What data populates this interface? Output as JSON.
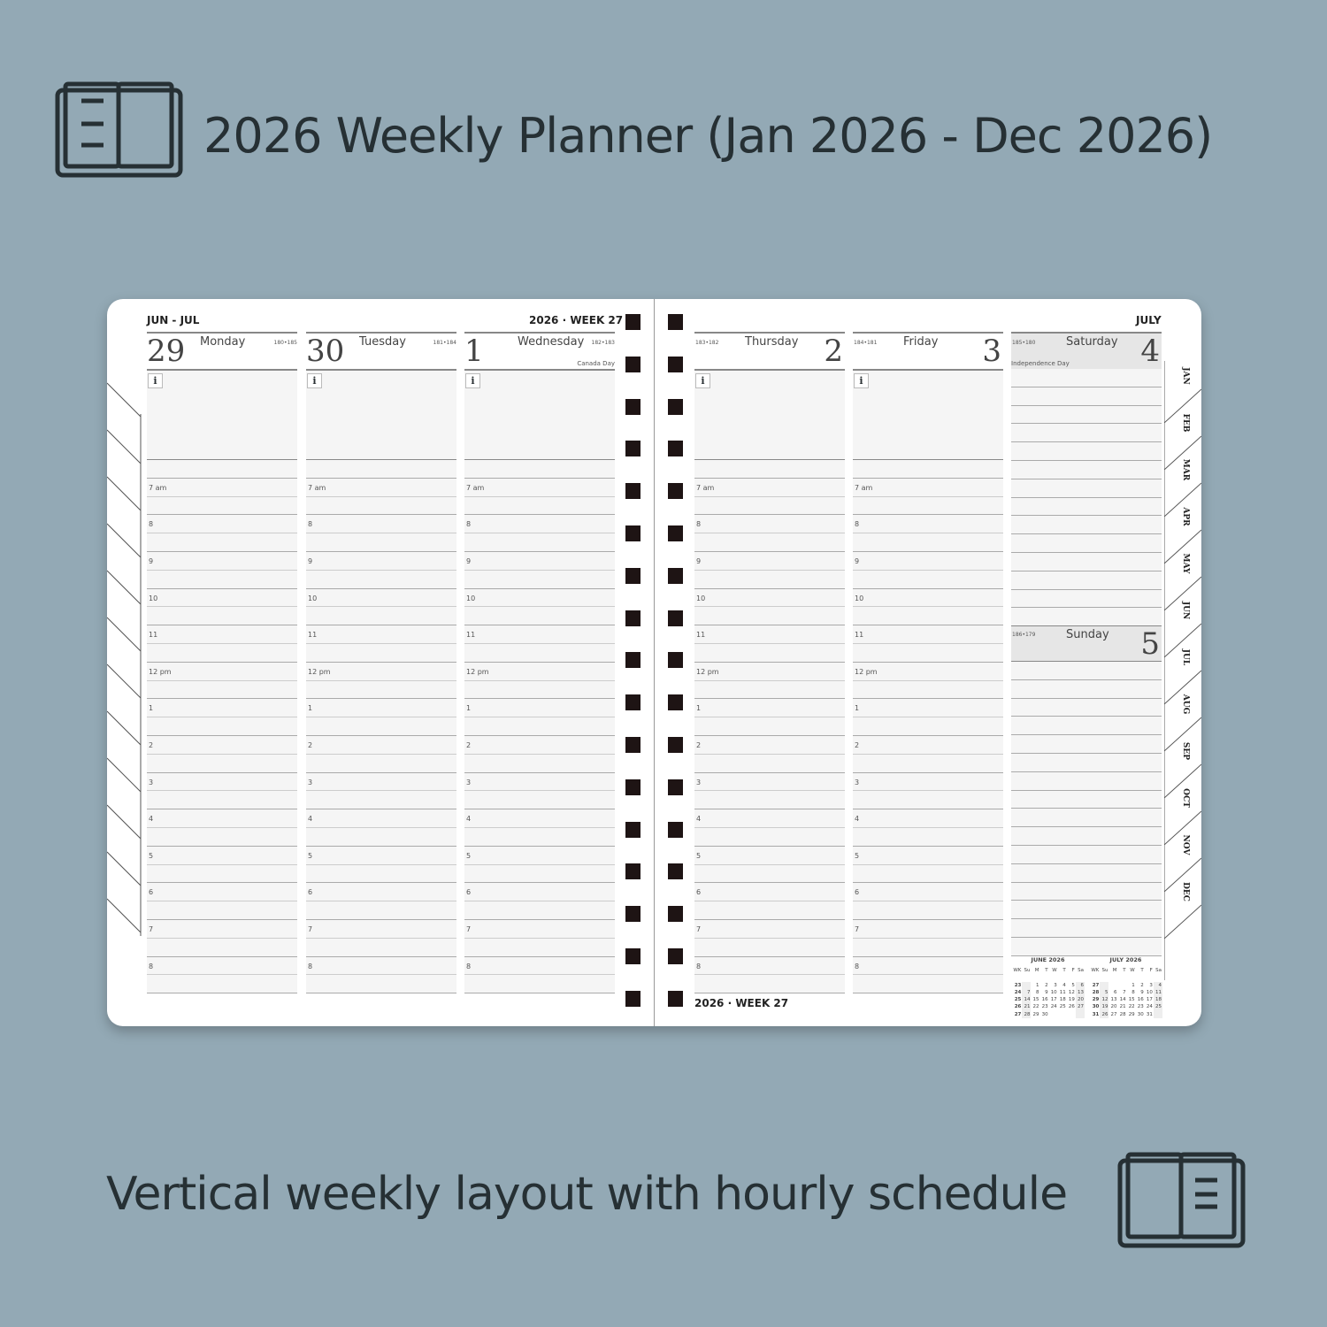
{
  "header": {
    "title": "2026 Weekly Planner (Jan 2026 - Dec 2026)",
    "icon": "open-book-icon"
  },
  "footer": {
    "subtitle": "Vertical weekly layout with hourly schedule",
    "icon": "open-book-icon"
  },
  "planner": {
    "left_range": "JUN - JUL",
    "left_week": "2026 · WEEK 27",
    "right_month": "JULY",
    "right_week": "2026 · WEEK 27",
    "info_label": "i",
    "hours": [
      "7 am",
      "8",
      "9",
      "10",
      "11",
      "12 pm",
      "1",
      "2",
      "3",
      "4",
      "5",
      "6",
      "7",
      "8"
    ],
    "days": [
      {
        "num": "29",
        "name": "Monday",
        "count": "180•185",
        "holiday": ""
      },
      {
        "num": "30",
        "name": "Tuesday",
        "count": "181•184",
        "holiday": ""
      },
      {
        "num": "1",
        "name": "Wednesday",
        "count": "182•183",
        "holiday": "Canada Day"
      },
      {
        "num": "2",
        "name": "Thursday",
        "count": "183•182",
        "holiday": ""
      },
      {
        "num": "3",
        "name": "Friday",
        "count": "184•181",
        "holiday": ""
      }
    ],
    "saturday": {
      "num": "4",
      "name": "Saturday",
      "count": "185•180",
      "holiday": "Independence Day"
    },
    "sunday": {
      "num": "5",
      "name": "Sunday",
      "count": "186•179"
    },
    "tabs": [
      "JAN",
      "FEB",
      "MAR",
      "APR",
      "MAY",
      "JUN",
      "JUL",
      "AUG",
      "SEP",
      "OCT",
      "NOV",
      "DEC"
    ],
    "mini_calendars": [
      {
        "title": "JUNE  2026",
        "head": [
          "WK",
          "Su",
          "M",
          "T",
          "W",
          "T",
          "F",
          "Sa"
        ],
        "weeks": [
          [
            "23",
            "",
            "1",
            "2",
            "3",
            "4",
            "5",
            "6"
          ],
          [
            "24",
            "7",
            "8",
            "9",
            "10",
            "11",
            "12",
            "13"
          ],
          [
            "25",
            "14",
            "15",
            "16",
            "17",
            "18",
            "19",
            "20"
          ],
          [
            "26",
            "21",
            "22",
            "23",
            "24",
            "25",
            "26",
            "27"
          ],
          [
            "27",
            "28",
            "29",
            "30",
            "",
            "",
            "",
            ""
          ]
        ]
      },
      {
        "title": "JULY  2026",
        "head": [
          "WK",
          "Su",
          "M",
          "T",
          "W",
          "T",
          "F",
          "Sa"
        ],
        "weeks": [
          [
            "27",
            "",
            "",
            "",
            "1",
            "2",
            "3",
            "4"
          ],
          [
            "28",
            "5",
            "6",
            "7",
            "8",
            "9",
            "10",
            "11"
          ],
          [
            "29",
            "12",
            "13",
            "14",
            "15",
            "16",
            "17",
            "18"
          ],
          [
            "30",
            "19",
            "20",
            "21",
            "22",
            "23",
            "24",
            "25"
          ],
          [
            "31",
            "26",
            "27",
            "28",
            "29",
            "30",
            "31",
            ""
          ]
        ]
      }
    ]
  },
  "colors": {
    "background": "#93a9b5",
    "text": "#263034",
    "ring": "#1e1414"
  }
}
